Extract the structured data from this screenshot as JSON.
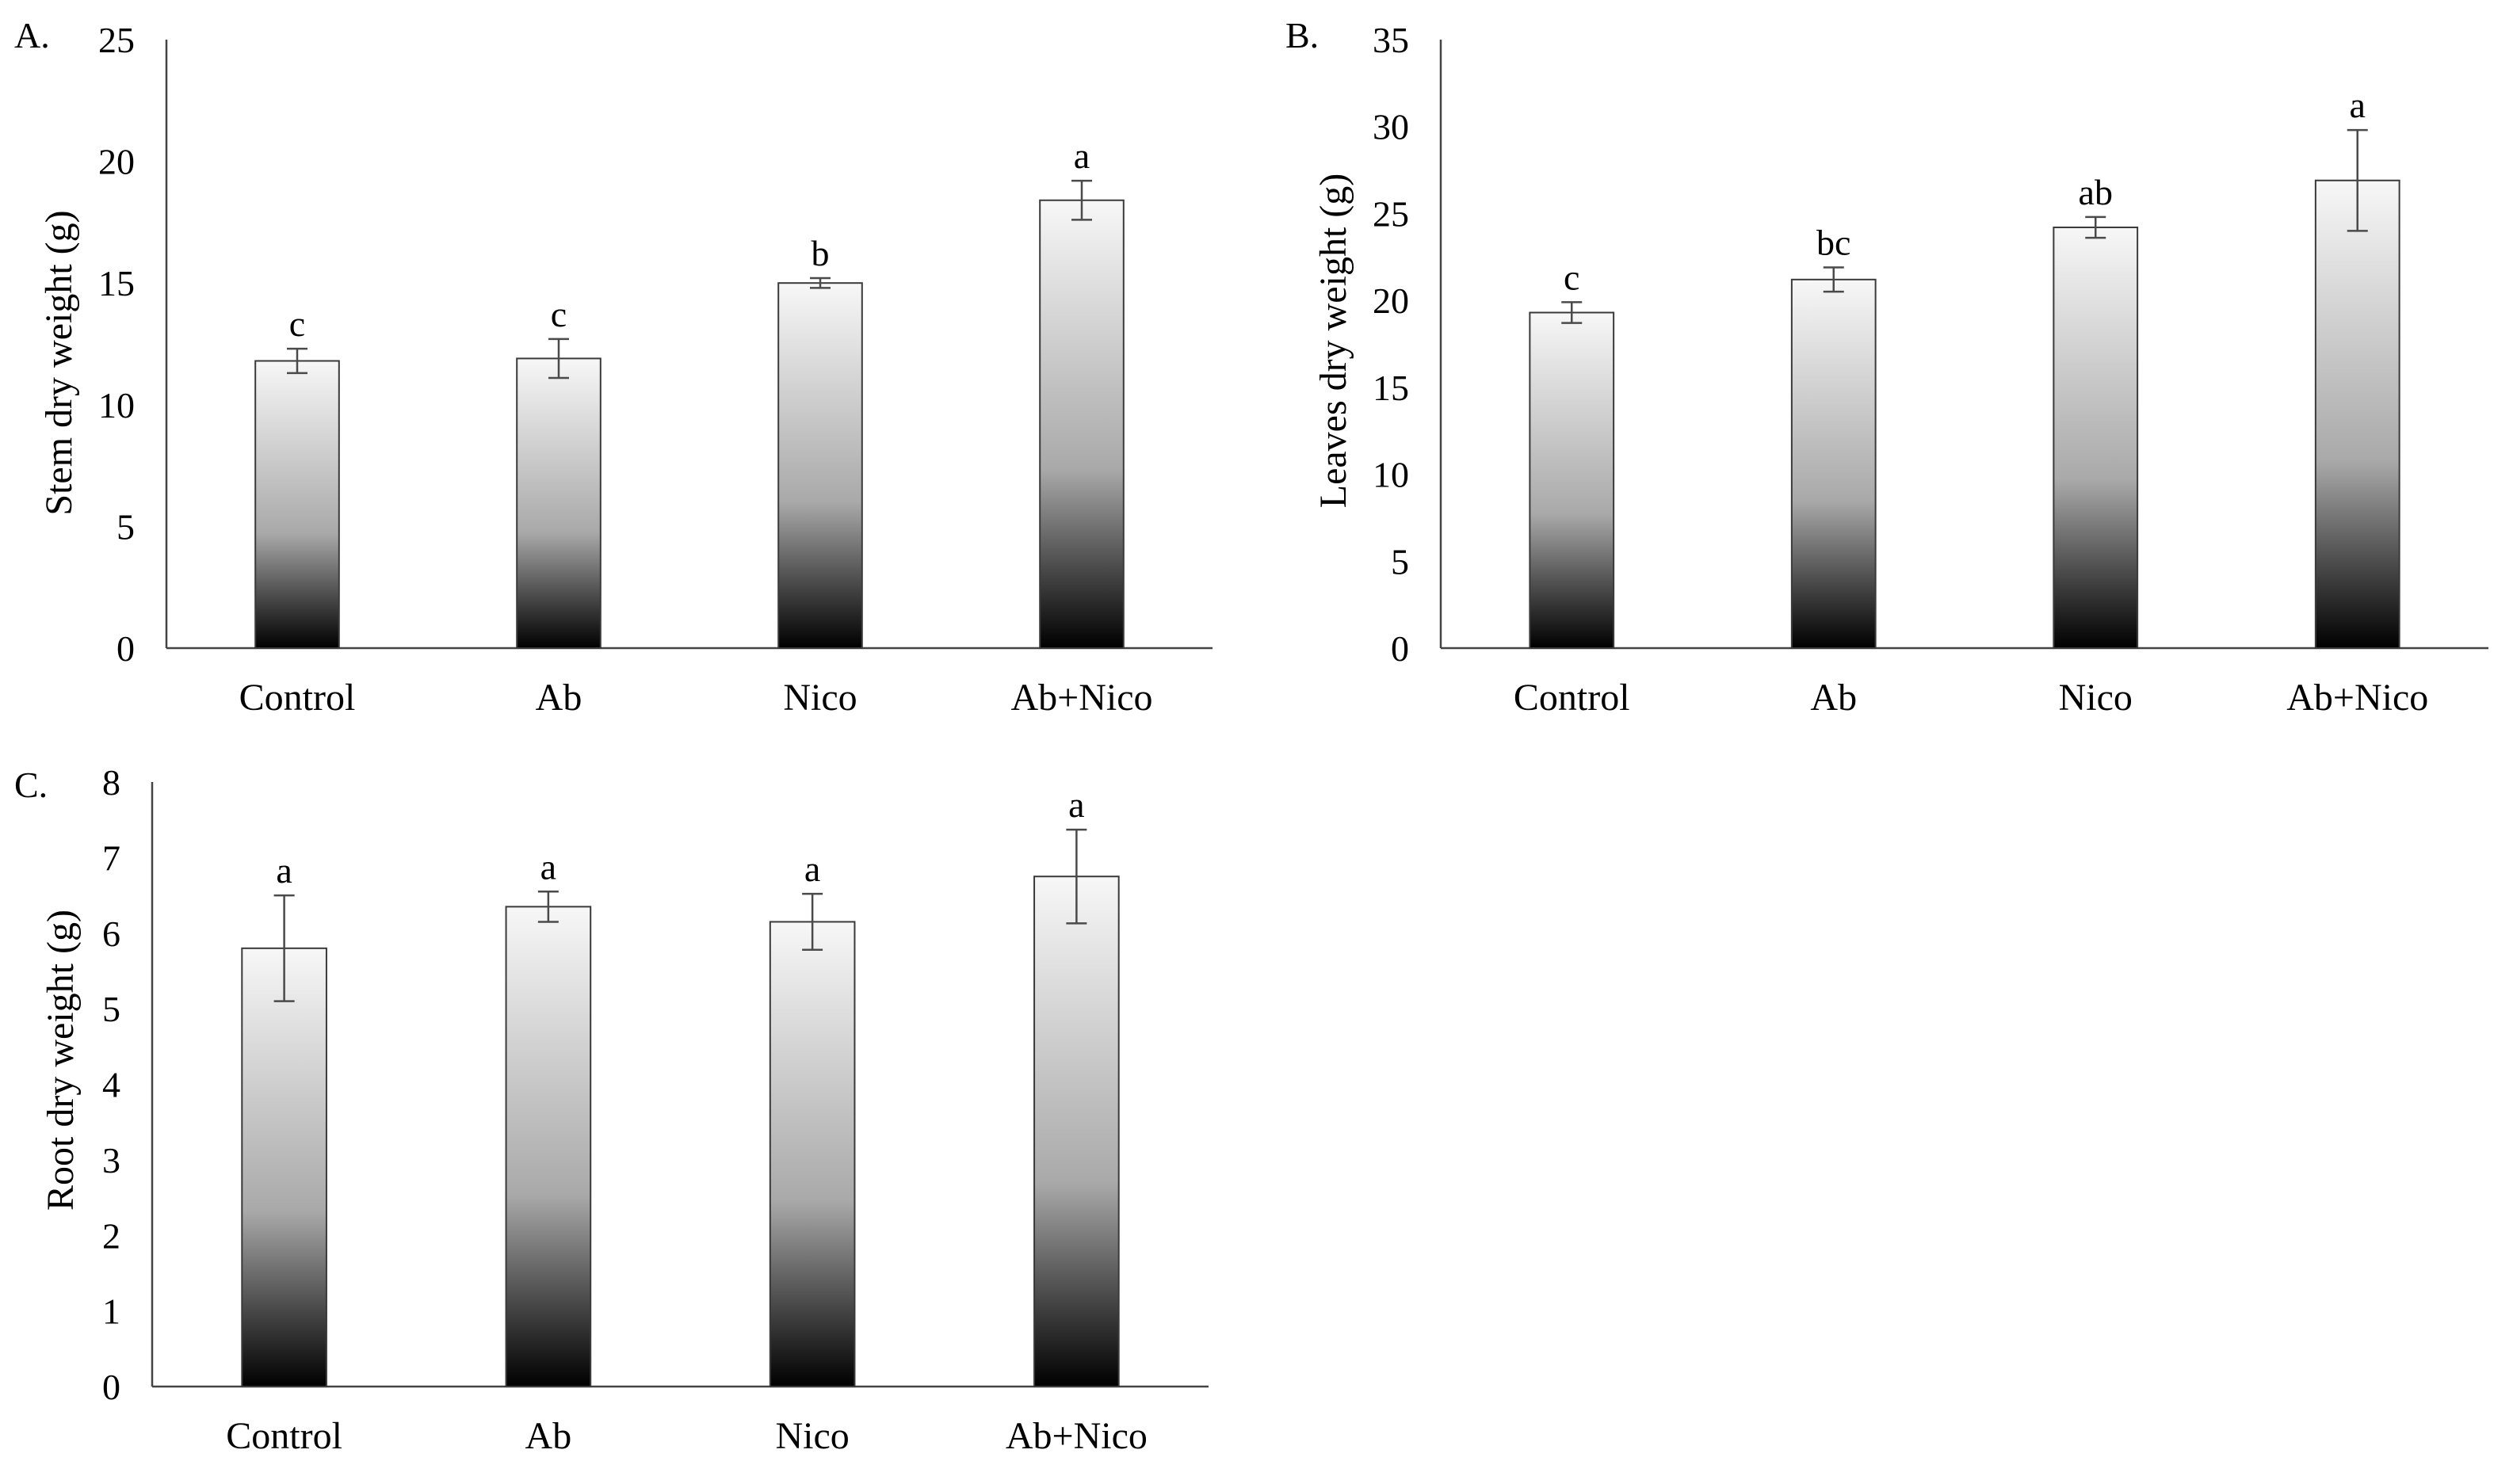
{
  "figure": {
    "colors": {
      "bar_top": "#f7f7f7",
      "bar_mid": "#a9a9a9",
      "bar_bottom": "#000000",
      "bar_outline": "#3a3a3a",
      "axis": "#444444",
      "error_bar": "#4a4a4a"
    }
  },
  "chart_data": [
    {
      "type": "bar",
      "panel_label": "A.",
      "title": "",
      "xlabel": "",
      "ylabel": "Stem dry weight (g)",
      "categories": [
        "Control",
        "Ab",
        "Nico",
        "Ab+Nico"
      ],
      "values": [
        11.8,
        11.9,
        15.0,
        18.4
      ],
      "errors": [
        0.5,
        0.8,
        0.2,
        0.8
      ],
      "letters": [
        "c",
        "c",
        "b",
        "a"
      ],
      "ylim": [
        0,
        25
      ],
      "yticks": [
        0,
        5,
        10,
        15,
        20,
        25
      ],
      "ytick_labels": [
        "0",
        "5",
        "10",
        "15",
        "20",
        "25"
      ],
      "grid": false
    },
    {
      "type": "bar",
      "panel_label": "B.",
      "title": "",
      "xlabel": "",
      "ylabel": "Leaves dry weight (g)",
      "categories": [
        "Control",
        "Ab",
        "Nico",
        "Ab+Nico"
      ],
      "values": [
        19.3,
        21.2,
        24.2,
        26.9
      ],
      "errors": [
        0.6,
        0.7,
        0.6,
        2.9
      ],
      "letters": [
        "c",
        "bc",
        "ab",
        "a"
      ],
      "ylim": [
        0,
        35
      ],
      "yticks": [
        0,
        5,
        10,
        15,
        20,
        25,
        30,
        35
      ],
      "ytick_labels": [
        "0",
        "5",
        "10",
        "15",
        "20",
        "25",
        "30",
        "35"
      ],
      "grid": false
    },
    {
      "type": "bar",
      "panel_label": "C.",
      "title": "",
      "xlabel": "",
      "ylabel": "Root dry weight (g)",
      "categories": [
        "Control",
        "Ab",
        "Nico",
        "Ab+Nico"
      ],
      "values": [
        5.8,
        6.35,
        6.15,
        6.75
      ],
      "errors": [
        0.7,
        0.2,
        0.37,
        0.62
      ],
      "letters": [
        "a",
        "a",
        "a",
        "a"
      ],
      "ylim": [
        0,
        8
      ],
      "yticks": [
        0,
        1,
        2,
        3,
        4,
        5,
        6,
        7,
        8
      ],
      "ytick_labels": [
        "0",
        "1",
        "2",
        "3",
        "4",
        "5",
        "6",
        "7",
        "8"
      ],
      "grid": false
    }
  ]
}
